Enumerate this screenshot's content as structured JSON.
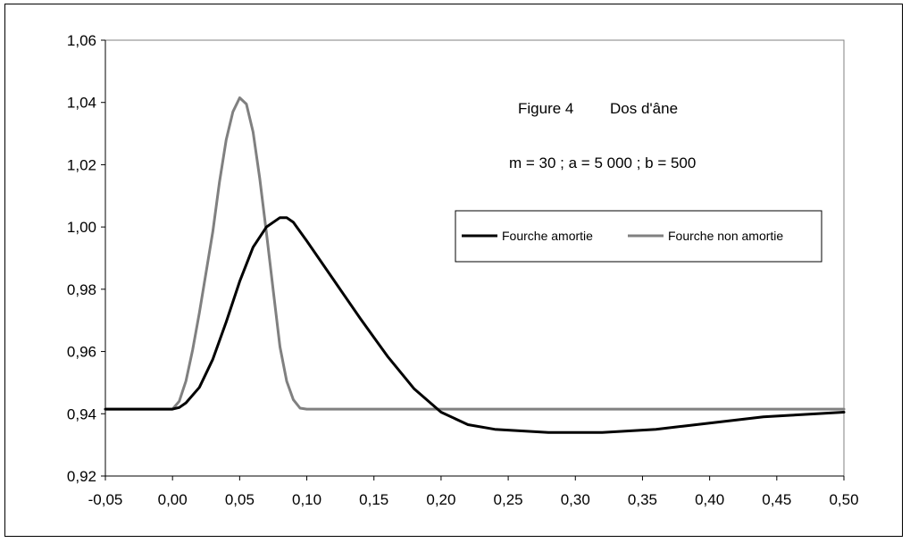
{
  "chart_data": {
    "type": "line",
    "title": "",
    "xlabel": "",
    "ylabel": "",
    "xlim": [
      -0.05,
      0.5
    ],
    "ylim": [
      0.92,
      1.06
    ],
    "x_ticks": [
      "-0,05",
      "0,00",
      "0,05",
      "0,10",
      "0,15",
      "0,20",
      "0,25",
      "0,30",
      "0,35",
      "0,40",
      "0,45",
      "0,50"
    ],
    "x_tick_values": [
      -0.05,
      0.0,
      0.05,
      0.1,
      0.15,
      0.2,
      0.25,
      0.3,
      0.35,
      0.4,
      0.45,
      0.5
    ],
    "y_ticks": [
      "0,92",
      "0,94",
      "0,96",
      "0,98",
      "1,00",
      "1,02",
      "1,04",
      "1,06"
    ],
    "y_tick_values": [
      0.92,
      0.94,
      0.96,
      0.98,
      1.0,
      1.02,
      1.04,
      1.06
    ],
    "grid": false,
    "legend_position": "right",
    "annotations": {
      "figure_label": "Figure 4",
      "figure_name": "Dos d'âne",
      "params": "m = 30 ; a = 5 000 ; b = 500"
    },
    "series": [
      {
        "name": "Fourche amortie",
        "color": "#000000",
        "x": [
          -0.05,
          0.0,
          0.005,
          0.01,
          0.02,
          0.03,
          0.04,
          0.05,
          0.06,
          0.07,
          0.08,
          0.085,
          0.09,
          0.1,
          0.12,
          0.14,
          0.16,
          0.18,
          0.2,
          0.22,
          0.24,
          0.26,
          0.28,
          0.3,
          0.32,
          0.34,
          0.36,
          0.38,
          0.4,
          0.42,
          0.44,
          0.46,
          0.48,
          0.5
        ],
        "values": [
          0.9415,
          0.9415,
          0.942,
          0.9435,
          0.9485,
          0.9575,
          0.9695,
          0.9825,
          0.9935,
          1.0,
          1.003,
          1.003,
          1.0015,
          0.9955,
          0.983,
          0.9705,
          0.9585,
          0.948,
          0.9405,
          0.9365,
          0.935,
          0.9345,
          0.934,
          0.934,
          0.934,
          0.9345,
          0.935,
          0.936,
          0.937,
          0.938,
          0.939,
          0.9395,
          0.94,
          0.9405
        ]
      },
      {
        "name": "Fourche non amortie",
        "color": "#808080",
        "x": [
          -0.05,
          0.0,
          0.005,
          0.01,
          0.015,
          0.02,
          0.025,
          0.03,
          0.035,
          0.04,
          0.045,
          0.05,
          0.055,
          0.06,
          0.065,
          0.07,
          0.075,
          0.08,
          0.085,
          0.09,
          0.095,
          0.1,
          0.5
        ],
        "values": [
          0.9415,
          0.9415,
          0.944,
          0.9505,
          0.9605,
          0.9725,
          0.9855,
          0.9985,
          1.0145,
          1.028,
          1.037,
          1.0415,
          1.0395,
          1.0305,
          1.0155,
          0.998,
          0.9795,
          0.9615,
          0.9505,
          0.9445,
          0.9418,
          0.9415,
          0.9415
        ]
      }
    ]
  }
}
